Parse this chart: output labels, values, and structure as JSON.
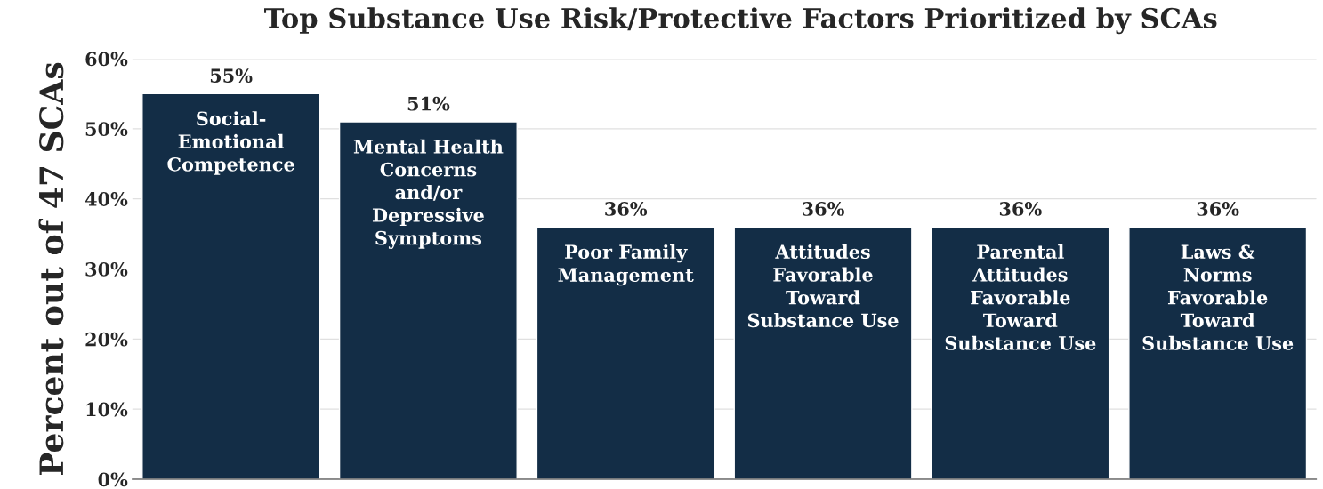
{
  "chart_data": {
    "type": "bar",
    "title": "Top Substance Use Risk/Protective Factors Prioritized by SCAs",
    "ylabel": "Percent out of 47 SCAs",
    "categories": [
      "Social-\nEmotional\nCompetence",
      "Mental Health\nConcerns\nand/or\nDepressive\nSymptoms",
      "Poor Family\nManagement",
      "Attitudes\nFavorable\nToward\nSubstance Use",
      "Parental\nAttitudes\nFavorable\nToward\nSubstance Use",
      "Laws &\nNorms\nFavorable\nToward\nSubstance Use"
    ],
    "values": [
      55,
      51,
      36,
      36,
      36,
      36
    ],
    "value_labels": [
      "55%",
      "51%",
      "36%",
      "36%",
      "36%",
      "36%"
    ],
    "color": "#132d46",
    "ylim": [
      0,
      60
    ],
    "yticks": [
      {
        "value": 0,
        "label": "0%"
      },
      {
        "value": 10,
        "label": "10%"
      },
      {
        "value": 20,
        "label": "20%"
      },
      {
        "value": 30,
        "label": "30%"
      },
      {
        "value": 40,
        "label": "40%"
      },
      {
        "value": 50,
        "label": "50%"
      },
      {
        "value": 60,
        "label": "60%"
      }
    ],
    "grid": "y",
    "legend": false
  }
}
